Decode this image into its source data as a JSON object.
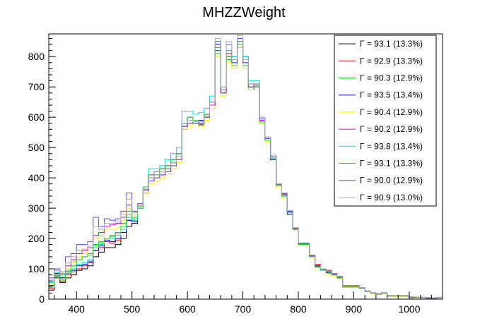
{
  "chart_data": {
    "type": "line",
    "title": "MHZZWeight",
    "xlim": [
      350,
      1060
    ],
    "ylim": [
      0,
      875
    ],
    "xticks": [
      "400",
      "500",
      "600",
      "700",
      "800",
      "900",
      "1000"
    ],
    "xtick_values": [
      400,
      500,
      600,
      700,
      800,
      900,
      1000
    ],
    "yticks": [
      "0",
      "100",
      "200",
      "300",
      "400",
      "500",
      "600",
      "700",
      "800"
    ],
    "ytick_values": [
      0,
      100,
      200,
      300,
      400,
      500,
      600,
      700,
      800
    ],
    "grid": false,
    "legend_position": "top-right",
    "bin_width": 10,
    "x": [
      355,
      365,
      375,
      385,
      395,
      405,
      415,
      425,
      435,
      445,
      455,
      465,
      475,
      485,
      495,
      505,
      515,
      525,
      535,
      545,
      555,
      565,
      575,
      585,
      595,
      605,
      615,
      625,
      635,
      645,
      655,
      665,
      675,
      685,
      695,
      705,
      715,
      725,
      735,
      745,
      755,
      765,
      775,
      785,
      795,
      805,
      815,
      825,
      835,
      845,
      855,
      865,
      875,
      885,
      895,
      905,
      915,
      925,
      935,
      945,
      955,
      965,
      975,
      985,
      995,
      1005,
      1015,
      1025,
      1035,
      1045,
      1055
    ],
    "series": [
      {
        "name": "Γ = 93.1 (13.3%)",
        "color": "#000000",
        "values": [
          30,
          70,
          55,
          70,
          80,
          95,
          100,
          110,
          140,
          155,
          170,
          170,
          180,
          200,
          240,
          250,
          300,
          350,
          400,
          410,
          420,
          430,
          450,
          470,
          560,
          590,
          580,
          575,
          600,
          640,
          820,
          680,
          800,
          780,
          830,
          780,
          690,
          700,
          580,
          520,
          460,
          370,
          340,
          280,
          230,
          180,
          180,
          140,
          110,
          100,
          90,
          80,
          70,
          40,
          40,
          40,
          35,
          25,
          20,
          15,
          20,
          10,
          10,
          10,
          10,
          5,
          5,
          5,
          3,
          3,
          5
        ]
      },
      {
        "name": "Γ = 92.9 (13.3%)",
        "color": "#ff0000",
        "values": [
          35,
          75,
          60,
          80,
          90,
          100,
          110,
          125,
          160,
          170,
          190,
          185,
          195,
          220,
          260,
          260,
          310,
          360,
          410,
          420,
          430,
          440,
          460,
          480,
          570,
          600,
          590,
          585,
          610,
          650,
          830,
          690,
          810,
          790,
          850,
          790,
          700,
          710,
          590,
          530,
          470,
          380,
          350,
          290,
          235,
          185,
          185,
          145,
          115,
          100,
          95,
          85,
          75,
          45,
          45,
          45,
          38,
          28,
          22,
          18,
          22,
          12,
          12,
          12,
          12,
          8,
          7,
          6,
          5,
          4,
          6
        ]
      },
      {
        "name": "Γ = 90.3 (12.9%)",
        "color": "#00cc00",
        "values": [
          40,
          80,
          70,
          90,
          110,
          130,
          140,
          150,
          180,
          190,
          200,
          210,
          220,
          250,
          290,
          270,
          305,
          360,
          400,
          410,
          420,
          430,
          450,
          470,
          570,
          590,
          580,
          580,
          600,
          640,
          810,
          680,
          790,
          770,
          840,
          770,
          700,
          690,
          580,
          520,
          470,
          375,
          340,
          290,
          230,
          180,
          180,
          140,
          105,
          95,
          85,
          80,
          70,
          42,
          42,
          42,
          36,
          26,
          20,
          16,
          20,
          11,
          11,
          11,
          11,
          6,
          6,
          5,
          4,
          3,
          5
        ]
      },
      {
        "name": "Γ = 93.5 (13.4%)",
        "color": "#0000cc",
        "values": [
          45,
          85,
          70,
          90,
          95,
          110,
          115,
          120,
          160,
          175,
          195,
          190,
          200,
          220,
          260,
          255,
          300,
          360,
          410,
          420,
          430,
          440,
          460,
          480,
          580,
          600,
          590,
          590,
          610,
          650,
          840,
          690,
          820,
          800,
          860,
          800,
          710,
          710,
          590,
          530,
          465,
          380,
          345,
          285,
          235,
          185,
          185,
          145,
          112,
          100,
          92,
          82,
          72,
          44,
          44,
          44,
          37,
          27,
          21,
          17,
          21,
          11,
          11,
          11,
          11,
          7,
          6,
          5,
          4,
          3,
          5
        ]
      },
      {
        "name": "Γ = 90.4 (12.9%)",
        "color": "#ffee00",
        "values": [
          50,
          90,
          75,
          100,
          120,
          140,
          150,
          160,
          200,
          210,
          230,
          230,
          235,
          260,
          300,
          280,
          300,
          350,
          380,
          390,
          400,
          410,
          430,
          450,
          560,
          570,
          580,
          570,
          590,
          630,
          800,
          670,
          780,
          760,
          830,
          760,
          690,
          690,
          580,
          520,
          465,
          370,
          335,
          285,
          225,
          178,
          178,
          138,
          104,
          94,
          84,
          78,
          68,
          41,
          41,
          41,
          35,
          25,
          19,
          15,
          19,
          10,
          10,
          10,
          10,
          6,
          5,
          5,
          4,
          3,
          5
        ]
      },
      {
        "name": "Γ = 90.2 (12.9%)",
        "color": "#dd00dd",
        "values": [
          60,
          95,
          80,
          110,
          130,
          150,
          160,
          170,
          210,
          220,
          240,
          245,
          250,
          270,
          310,
          290,
          310,
          360,
          390,
          400,
          410,
          420,
          440,
          460,
          570,
          580,
          590,
          580,
          600,
          640,
          820,
          680,
          800,
          780,
          850,
          780,
          700,
          700,
          590,
          530,
          470,
          375,
          345,
          290,
          232,
          182,
          182,
          142,
          108,
          98,
          88,
          82,
          72,
          43,
          43,
          43,
          37,
          27,
          21,
          17,
          21,
          11,
          11,
          11,
          11,
          7,
          6,
          5,
          4,
          3,
          5
        ]
      },
      {
        "name": "Γ = 93.8 (13.4%)",
        "color": "#00dddd",
        "values": [
          55,
          88,
          72,
          95,
          100,
          115,
          120,
          130,
          170,
          180,
          200,
          200,
          210,
          230,
          270,
          260,
          300,
          370,
          430,
          430,
          440,
          460,
          480,
          500,
          620,
          620,
          610,
          615,
          630,
          670,
          850,
          700,
          820,
          800,
          860,
          800,
          720,
          720,
          600,
          530,
          465,
          380,
          350,
          285,
          235,
          185,
          185,
          145,
          112,
          100,
          92,
          82,
          72,
          44,
          44,
          44,
          37,
          27,
          21,
          17,
          21,
          11,
          11,
          11,
          11,
          7,
          6,
          5,
          4,
          3,
          5
        ]
      },
      {
        "name": "Γ = 93.1 (13.3%)",
        "color": "#33cc33",
        "values": [
          40,
          78,
          65,
          85,
          110,
          130,
          140,
          145,
          175,
          185,
          200,
          205,
          215,
          240,
          280,
          265,
          305,
          370,
          410,
          420,
          430,
          440,
          460,
          480,
          580,
          600,
          590,
          585,
          610,
          650,
          830,
          690,
          800,
          780,
          850,
          780,
          700,
          700,
          585,
          525,
          470,
          375,
          340,
          288,
          232,
          181,
          181,
          141,
          106,
          96,
          86,
          80,
          70,
          42,
          42,
          42,
          36,
          26,
          20,
          16,
          20,
          11,
          11,
          11,
          11,
          6,
          6,
          5,
          4,
          3,
          5
        ]
      },
      {
        "name": "Γ = 90.0 (12.9%)",
        "color": "#5555dd",
        "values": [
          70,
          100,
          90,
          140,
          150,
          180,
          180,
          190,
          270,
          240,
          265,
          260,
          265,
          290,
          350,
          290,
          315,
          360,
          390,
          400,
          410,
          420,
          440,
          460,
          570,
          580,
          580,
          580,
          600,
          650,
          850,
          690,
          840,
          780,
          860,
          780,
          700,
          705,
          595,
          530,
          470,
          378,
          348,
          288,
          233,
          183,
          183,
          143,
          108,
          98,
          88,
          82,
          72,
          43,
          43,
          43,
          37,
          27,
          21,
          17,
          21,
          11,
          11,
          11,
          11,
          7,
          6,
          5,
          4,
          3,
          5
        ]
      },
      {
        "name": "Γ = 90.9 (13.0%)",
        "color": "#aaaaaa",
        "values": [
          65,
          95,
          85,
          120,
          140,
          160,
          165,
          175,
          240,
          230,
          250,
          250,
          258,
          280,
          330,
          285,
          310,
          365,
          400,
          410,
          420,
          430,
          450,
          470,
          580,
          590,
          585,
          585,
          605,
          650,
          860,
          700,
          850,
          790,
          870,
          790,
          710,
          710,
          600,
          535,
          475,
          380,
          350,
          292,
          236,
          186,
          186,
          146,
          112,
          100,
          92,
          84,
          74,
          44,
          44,
          44,
          38,
          28,
          22,
          18,
          22,
          12,
          12,
          12,
          12,
          8,
          7,
          6,
          5,
          4,
          6
        ]
      }
    ]
  }
}
